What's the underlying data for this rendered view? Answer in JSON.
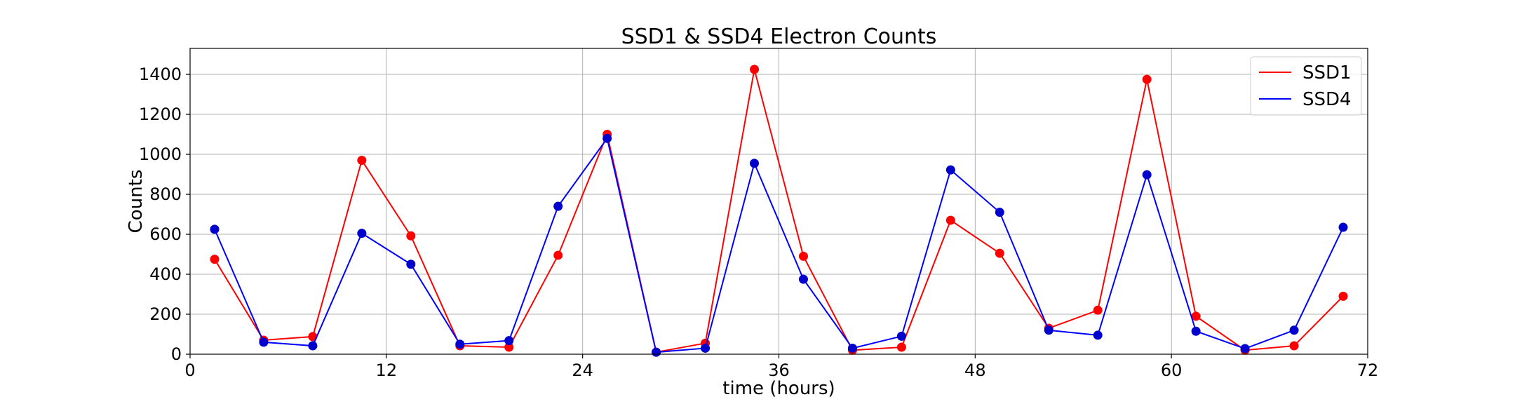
{
  "chart_data": {
    "type": "line",
    "title": "SSD1 & SSD4 Electron Counts",
    "xlabel": "time (hours)",
    "ylabel": "Counts",
    "xlim": [
      0,
      72
    ],
    "ylim": [
      0,
      1530
    ],
    "xticks": [
      0,
      12,
      24,
      36,
      48,
      60,
      72
    ],
    "yticks": [
      0,
      200,
      400,
      600,
      800,
      1000,
      1200,
      1400
    ],
    "grid": true,
    "legend_position": "top-right",
    "x": [
      1.5,
      4.5,
      7.5,
      10.5,
      13.5,
      16.5,
      19.5,
      22.5,
      25.5,
      28.5,
      31.5,
      34.5,
      37.5,
      40.5,
      43.5,
      46.5,
      49.5,
      52.5,
      55.5,
      58.5,
      61.5,
      64.5,
      67.5,
      70.5
    ],
    "series": [
      {
        "name": "SSD1",
        "color": "#ff0000",
        "marker_color": "#ff0000",
        "values": [
          475,
          70,
          88,
          970,
          592,
          42,
          35,
          495,
          1100,
          10,
          55,
          1425,
          490,
          20,
          35,
          670,
          505,
          130,
          220,
          1375,
          190,
          20,
          42,
          290
        ]
      },
      {
        "name": "SSD4",
        "color": "#0000ff",
        "marker_color": "#0000cc",
        "values": [
          625,
          60,
          42,
          605,
          450,
          50,
          68,
          740,
          1080,
          10,
          30,
          955,
          375,
          30,
          90,
          922,
          710,
          120,
          95,
          898,
          115,
          28,
          120,
          635
        ]
      }
    ]
  }
}
